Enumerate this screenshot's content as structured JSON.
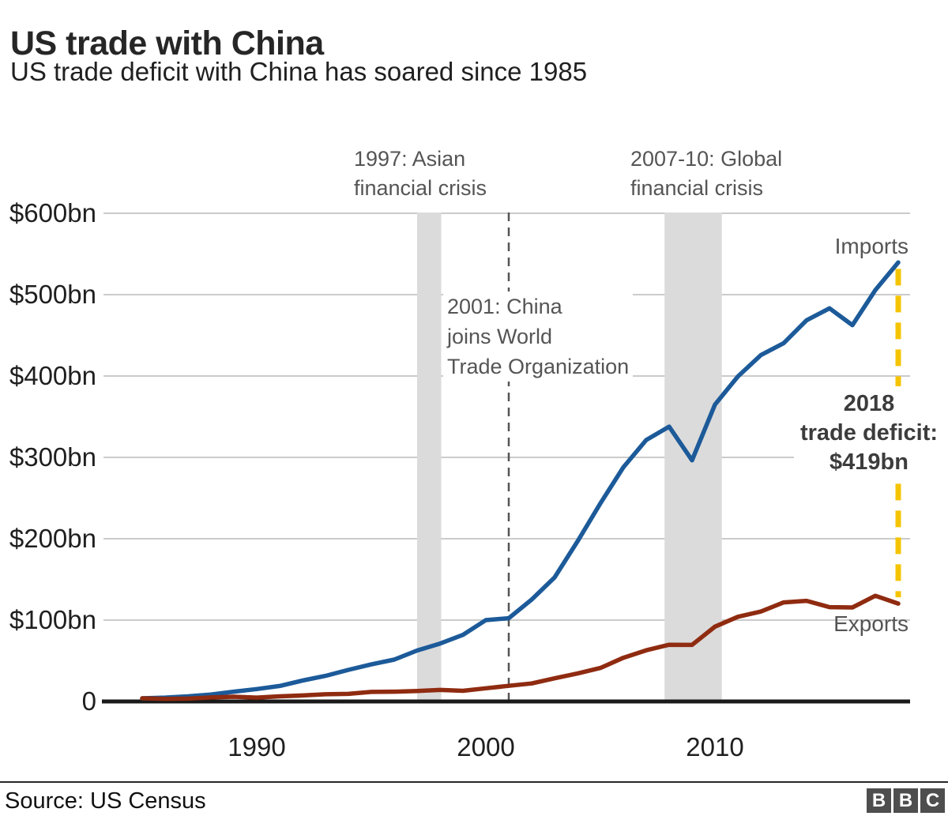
{
  "header": {
    "title": "US trade with China",
    "subtitle": "US trade deficit with China has soared since 1985"
  },
  "chart_data": {
    "type": "line",
    "title": "US trade with China",
    "subtitle": "US trade deficit with China has soared since 1985",
    "xlabel": "",
    "ylabel": "",
    "ylim": [
      0,
      620
    ],
    "grid": "horizontal",
    "x_years": [
      1985,
      1986,
      1987,
      1988,
      1989,
      1990,
      1991,
      1992,
      1993,
      1994,
      1995,
      1996,
      1997,
      1998,
      1999,
      2000,
      2001,
      2002,
      2003,
      2004,
      2005,
      2006,
      2007,
      2008,
      2009,
      2010,
      2011,
      2012,
      2013,
      2014,
      2015,
      2016,
      2017,
      2018
    ],
    "series": [
      {
        "name": "Imports",
        "color": "#1C5A99",
        "values": [
          3.9,
          4.8,
          6.3,
          8.5,
          12.0,
          15.2,
          19.0,
          25.7,
          31.5,
          38.8,
          45.5,
          51.5,
          62.6,
          71.2,
          81.8,
          100.0,
          102.3,
          125.2,
          152.4,
          196.7,
          243.5,
          287.8,
          321.4,
          337.8,
          296.4,
          364.9,
          399.4,
          425.6,
          440.4,
          468.5,
          483.2,
          462.5,
          505.5,
          539.5
        ]
      },
      {
        "name": "Exports",
        "color": "#8F2B10",
        "values": [
          3.9,
          3.1,
          3.5,
          5.0,
          5.8,
          4.8,
          6.3,
          7.4,
          8.8,
          9.3,
          11.7,
          12.0,
          12.8,
          14.2,
          13.1,
          16.2,
          19.2,
          22.1,
          28.4,
          34.4,
          41.2,
          53.7,
          62.9,
          69.7,
          69.5,
          91.9,
          104.1,
          110.5,
          121.7,
          123.7,
          115.9,
          115.5,
          129.9,
          120.3
        ]
      }
    ],
    "yticks": [
      {
        "value": 600,
        "label": "$600bn"
      },
      {
        "value": 500,
        "label": "$500bn"
      },
      {
        "value": 400,
        "label": "$400bn"
      },
      {
        "value": 300,
        "label": "$300bn"
      },
      {
        "value": 200,
        "label": "$200bn"
      },
      {
        "value": 100,
        "label": "$100bn"
      },
      {
        "value": 0,
        "label": "0"
      }
    ],
    "xticks": [
      {
        "value": 1990,
        "label": "1990"
      },
      {
        "value": 2000,
        "label": "2000"
      },
      {
        "value": 2010,
        "label": "2010"
      }
    ],
    "bands": [
      {
        "year_from": 1997.0,
        "year_to": 1998.05,
        "color": "#DBDBDB",
        "label": "1997: Asian\nfinancial crisis"
      },
      {
        "year_from": 2007.8,
        "year_to": 2010.3,
        "color": "#DBDBDB",
        "label": "2007-10: Global\nfinancial crisis"
      }
    ],
    "event_line": {
      "year": 2001,
      "label": "2001: China\njoins World\nTrade Organization"
    },
    "deficit_marker": {
      "year": 2018,
      "color": "#F5C400",
      "label": "2018\ntrade deficit:\n$419bn"
    },
    "series_labels": {
      "imports": "Imports",
      "exports": "Exports"
    },
    "legend_position": "inline-right"
  },
  "footer": {
    "source": "Source: US Census",
    "logo": [
      "B",
      "B",
      "C"
    ]
  }
}
